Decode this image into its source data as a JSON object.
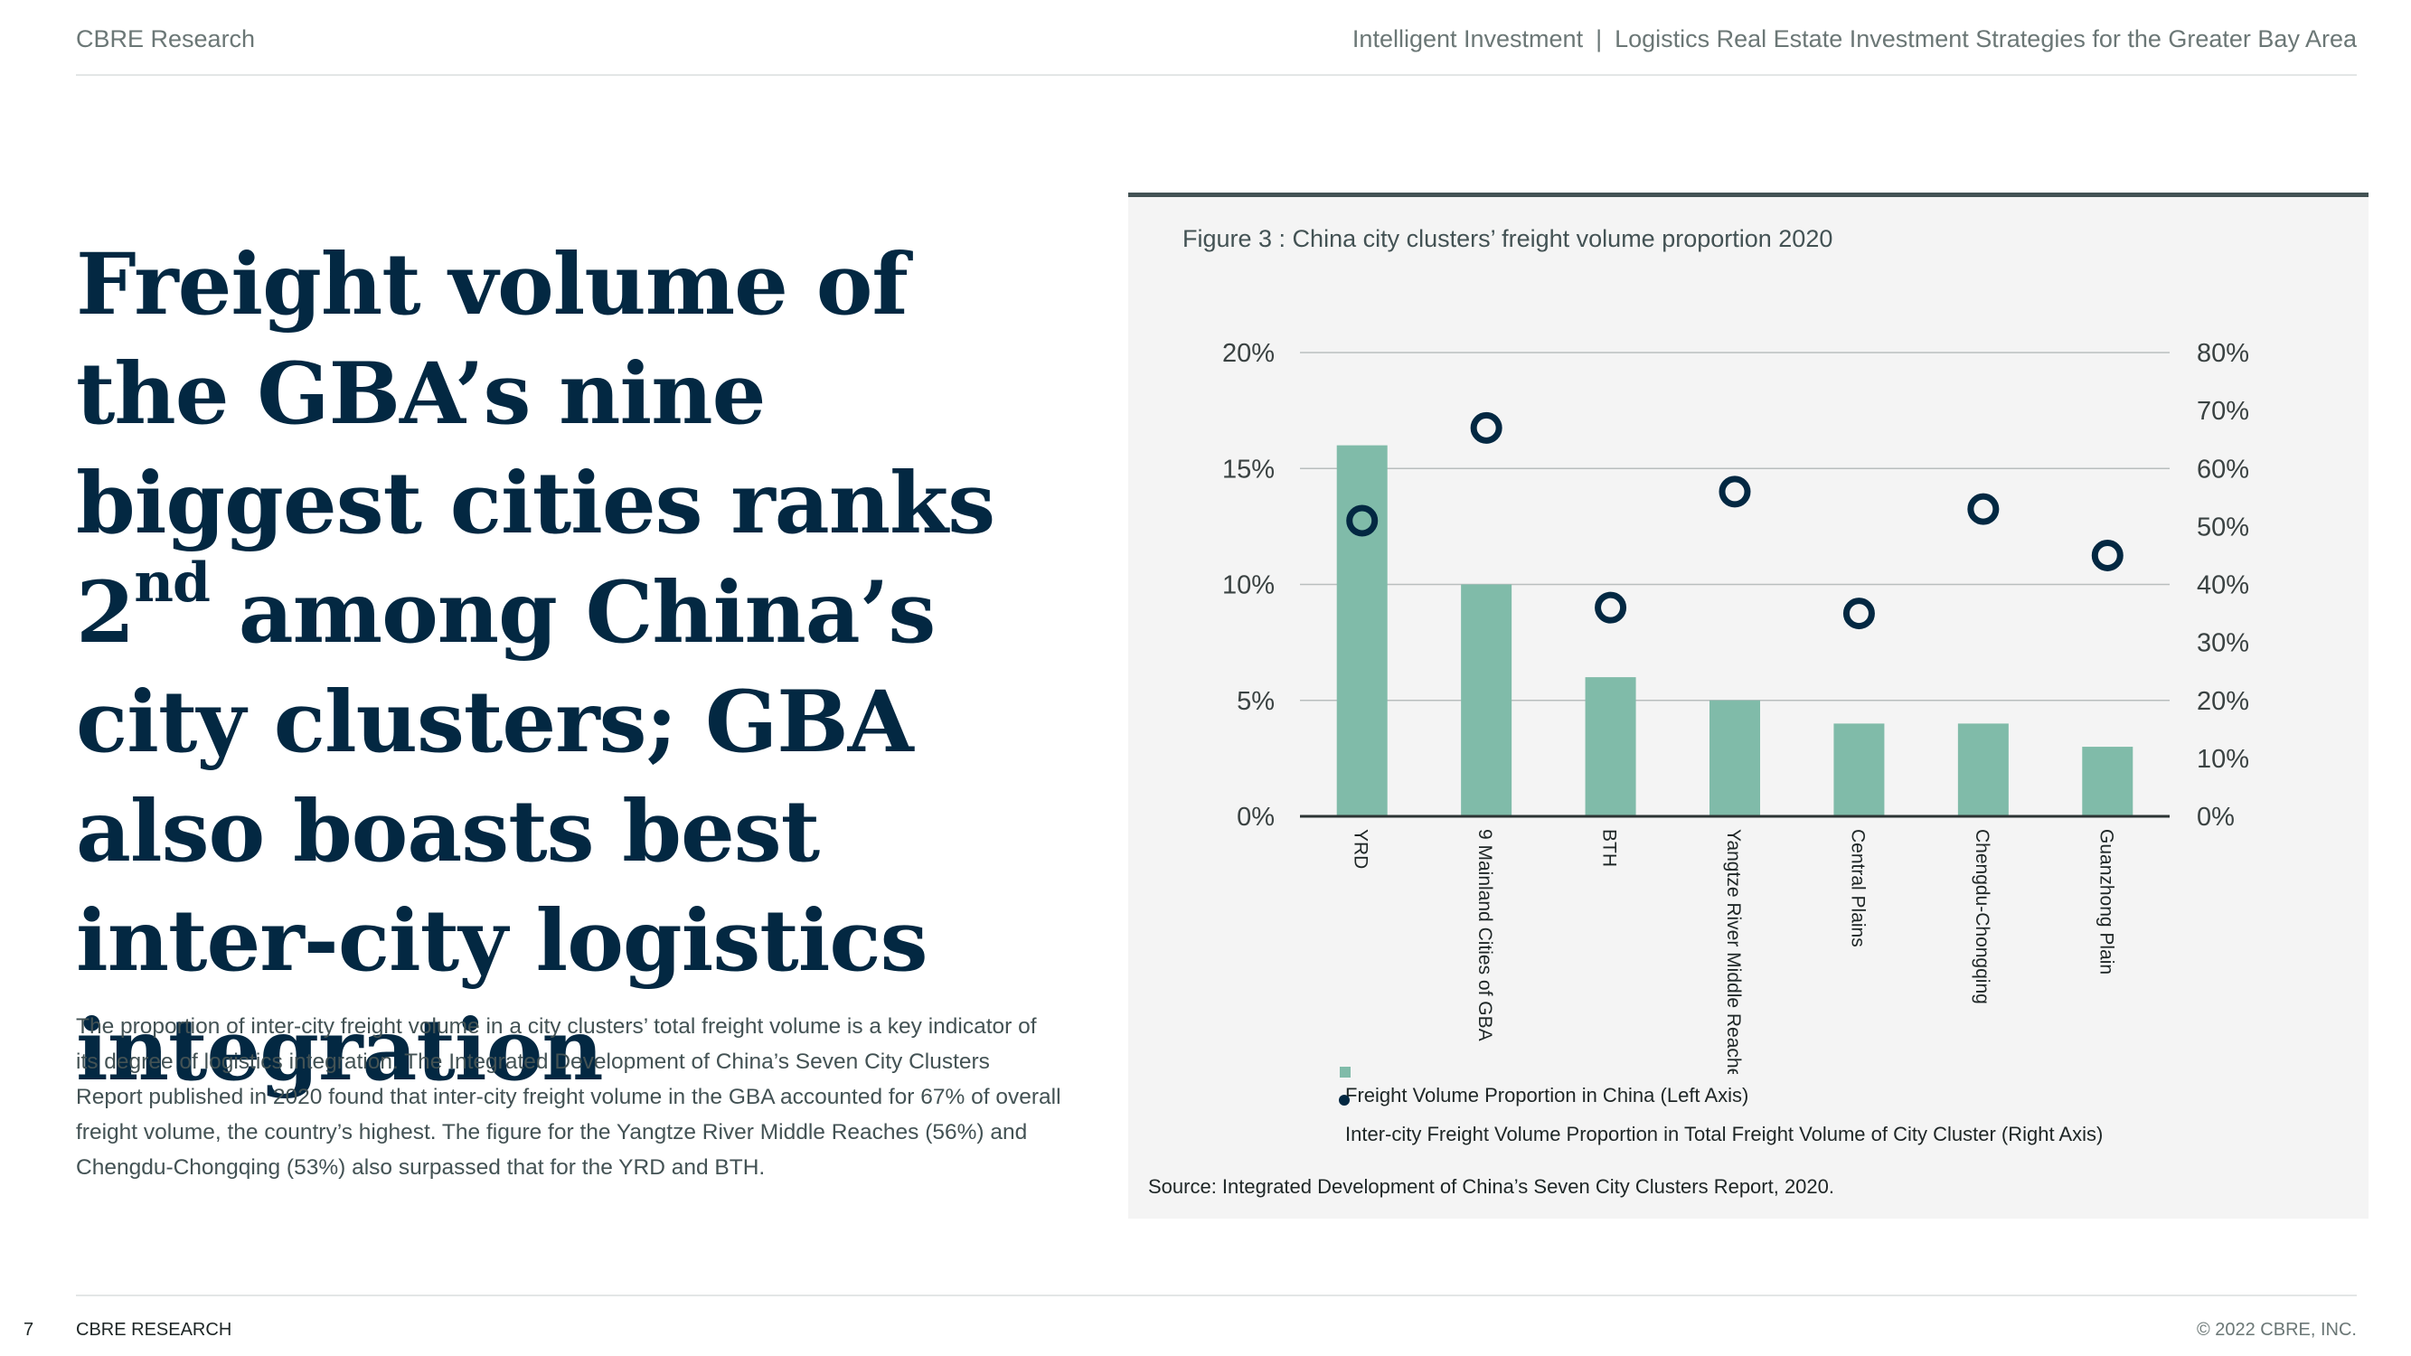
{
  "header": {
    "left": "CBRE Research",
    "right_part1": "Intelligent Investment",
    "separator": "|",
    "right_part2": "Logistics Real Estate Investment Strategies for the Greater Bay Area"
  },
  "headline": {
    "part1": "Freight volume of the GBA’s nine biggest cities ranks 2",
    "superscript": "nd",
    "part2": " among China’s city clusters; GBA also boasts best inter-city logistics integration"
  },
  "body": "The proportion of inter-city freight volume in a city clusters’ total freight volume is a key indicator of its degree of logistics integration. The Integrated Development of China’s Seven City Clusters Report published in 2020 found that inter-city freight volume in the GBA accounted for 67% of overall freight volume, the country’s highest. The figure for the Yangtze River Middle Reaches (56%) and Chengdu-Chongqing (53%) also surpassed that for the YRD and BTH.",
  "figure": {
    "title": "Figure 3 : China city clusters’ freight volume proportion 2020",
    "source": "Source: Integrated Development of China’s Seven City Clusters Report, 2020."
  },
  "chart_data": {
    "type": "bar",
    "categories": [
      "YRD",
      "9 Mainland Cities of GBA",
      "BTH",
      "Yangtze River Middle Reaches",
      "Central Plains",
      "Chengdu-Chongqing",
      "Guanzhong Plain"
    ],
    "series": [
      {
        "name": "Freight Volume Proportion in China  (Left Axis)",
        "type": "bar",
        "axis": "left",
        "values": [
          16,
          10,
          6,
          5,
          4,
          4,
          3
        ]
      },
      {
        "name": "Inter-city Freight Volume Proportion in Total Freight Volume of City Cluster (Right Axis)",
        "type": "scatter",
        "axis": "right",
        "values": [
          51,
          67,
          36,
          56,
          35,
          53,
          45
        ]
      }
    ],
    "left_axis": {
      "ticks": [
        "0%",
        "5%",
        "10%",
        "15%",
        "20%"
      ],
      "range": [
        0,
        20
      ]
    },
    "right_axis": {
      "ticks": [
        "0%",
        "10%",
        "20%",
        "30%",
        "40%",
        "50%",
        "60%",
        "70%",
        "80%"
      ],
      "range": [
        0,
        80
      ]
    },
    "bar_color": "#80bba9",
    "marker_color": "#032842",
    "grid": true
  },
  "footer": {
    "page": "7",
    "left": "CBRE RESEARCH",
    "right": "© 2022 CBRE, INC."
  }
}
